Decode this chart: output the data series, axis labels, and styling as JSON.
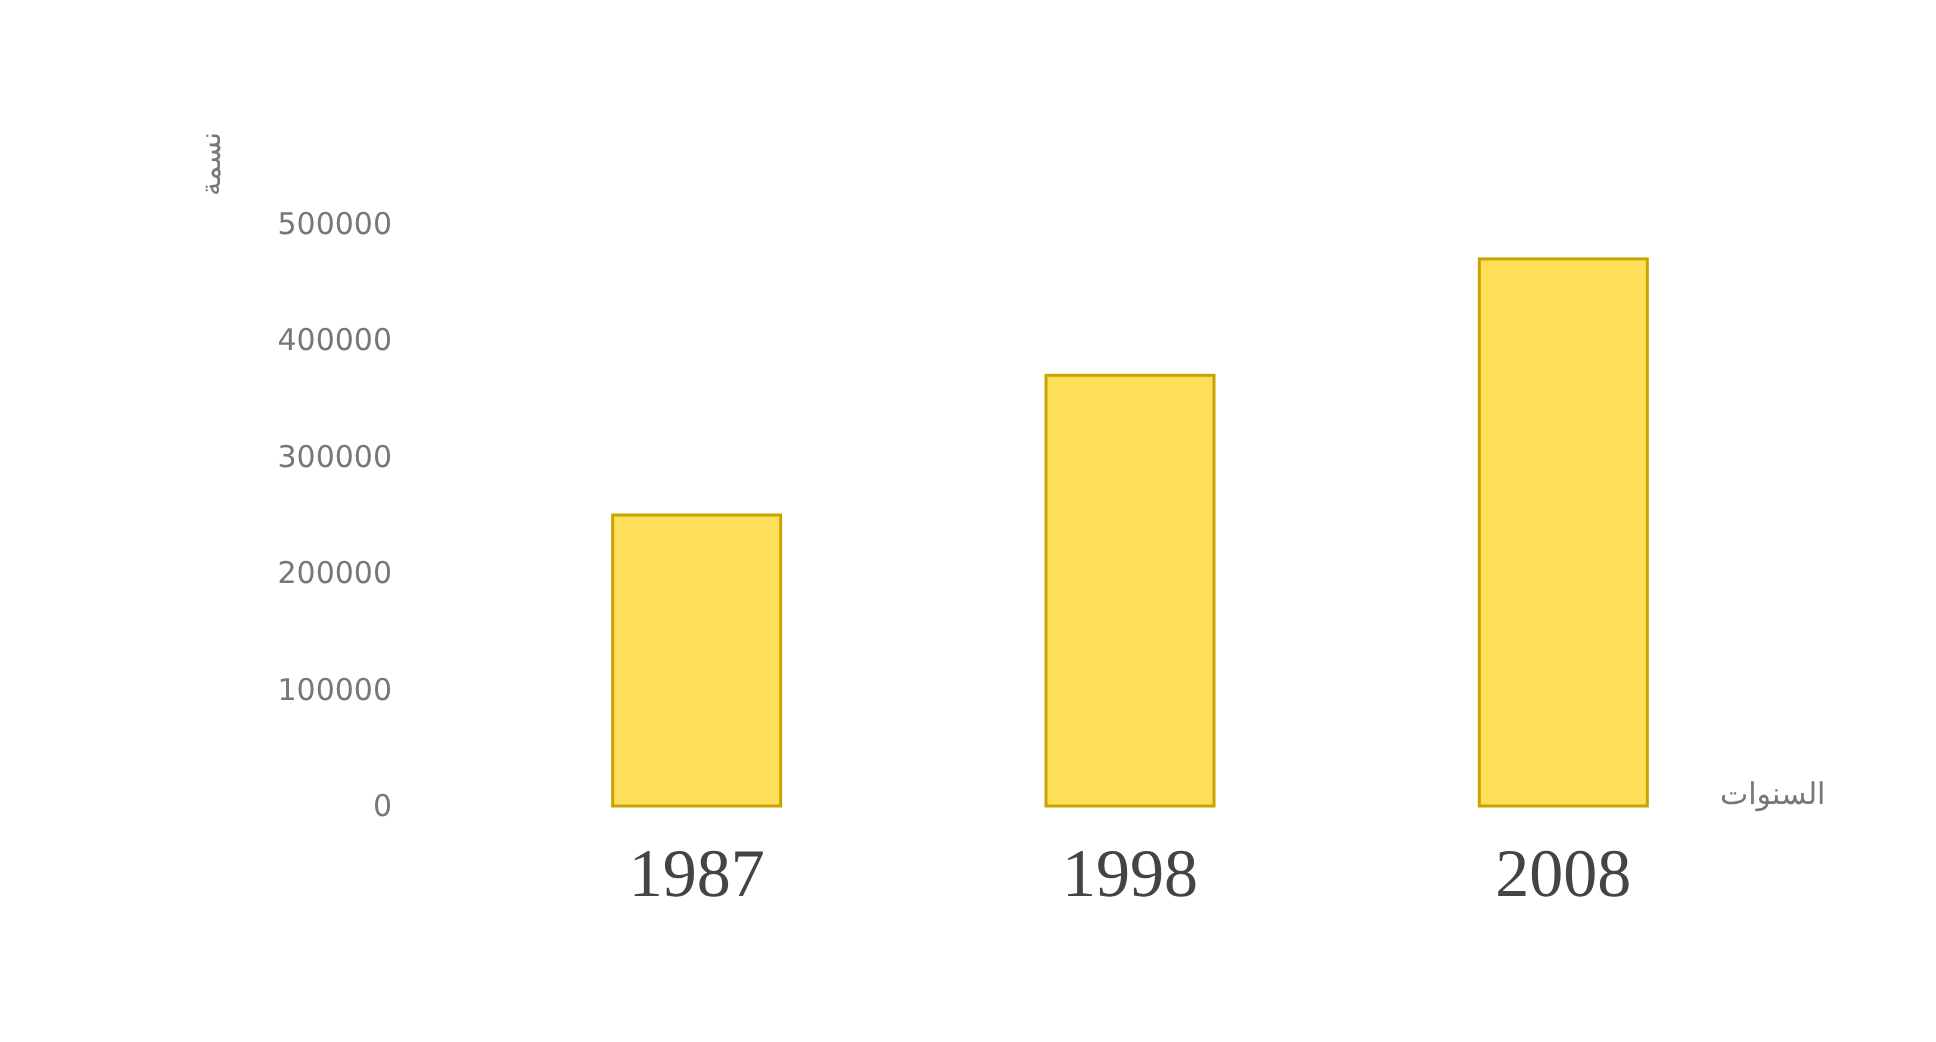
{
  "chart_data": {
    "type": "bar",
    "categories": [
      "1987",
      "1998",
      "2008"
    ],
    "values": [
      250000,
      370000,
      470000
    ],
    "color": "#ffde59",
    "ylabel": "نسمة",
    "xlabel": "السنوات",
    "ylim": [
      0,
      500000
    ],
    "yticks": [
      0,
      100000,
      200000,
      300000,
      400000,
      500000
    ],
    "grid": false
  }
}
